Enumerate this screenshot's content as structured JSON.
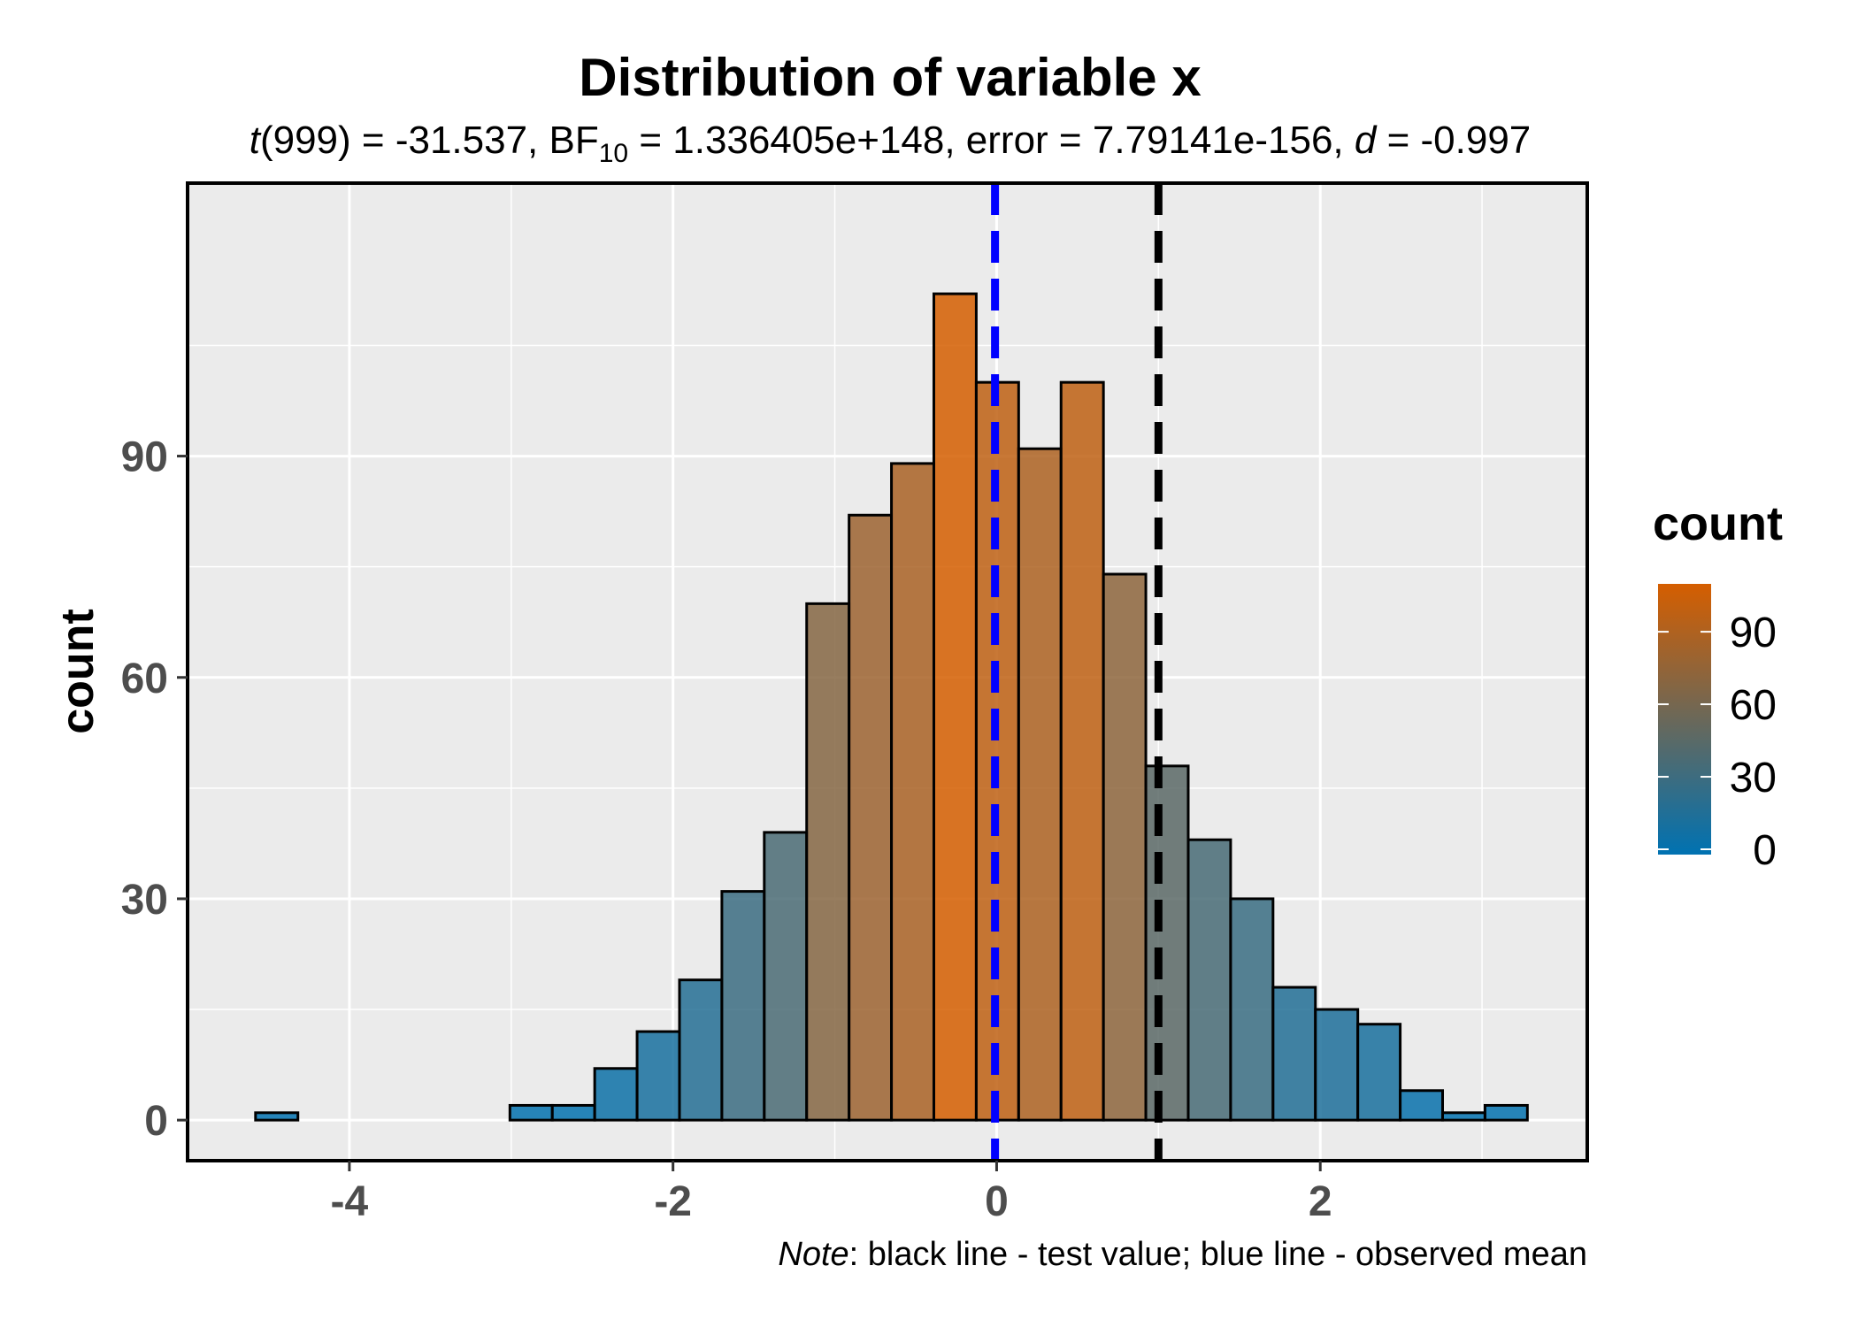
{
  "chart_data": {
    "type": "bar",
    "title": "Distribution of variable x",
    "subtitle": {
      "t_symbol": "t",
      "t_stat": "(999) = -31.537, ",
      "bf_label": "BF",
      "bf_subscript": "10",
      "bf_rest": " = 1.336405e+148, error = 7.79141e-156, ",
      "d_symbol": "d",
      "d_rest": " = -0.997"
    },
    "xlabel": "",
    "ylabel": "count",
    "xlim": [
      -5.0,
      3.65
    ],
    "ylim": [
      -5.5,
      127
    ],
    "x_ticks": [
      -4,
      -2,
      0,
      2
    ],
    "y_ticks": [
      0,
      30,
      60,
      90
    ],
    "grid": true,
    "bin_width": 0.262,
    "bins": [
      {
        "x0": -4.58,
        "count": 1
      },
      {
        "x0": -4.318,
        "count": 0
      },
      {
        "x0": -4.056,
        "count": 0
      },
      {
        "x0": -3.794,
        "count": 0
      },
      {
        "x0": -3.532,
        "count": 0
      },
      {
        "x0": -3.27,
        "count": 0
      },
      {
        "x0": -3.008,
        "count": 2
      },
      {
        "x0": -2.746,
        "count": 2
      },
      {
        "x0": -2.484,
        "count": 7
      },
      {
        "x0": -2.222,
        "count": 12
      },
      {
        "x0": -1.96,
        "count": 19
      },
      {
        "x0": -1.698,
        "count": 31
      },
      {
        "x0": -1.436,
        "count": 39
      },
      {
        "x0": -1.174,
        "count": 70
      },
      {
        "x0": -0.912,
        "count": 82
      },
      {
        "x0": -0.65,
        "count": 89
      },
      {
        "x0": -0.388,
        "count": 112
      },
      {
        "x0": -0.126,
        "count": 100
      },
      {
        "x0": 0.136,
        "count": 91
      },
      {
        "x0": 0.398,
        "count": 100
      },
      {
        "x0": 0.66,
        "count": 74
      },
      {
        "x0": 0.922,
        "count": 48
      },
      {
        "x0": 1.184,
        "count": 38
      },
      {
        "x0": 1.446,
        "count": 30
      },
      {
        "x0": 1.708,
        "count": 18
      },
      {
        "x0": 1.97,
        "count": 15
      },
      {
        "x0": 2.232,
        "count": 13
      },
      {
        "x0": 2.494,
        "count": 4
      },
      {
        "x0": 2.756,
        "count": 1
      },
      {
        "x0": 3.018,
        "count": 2
      }
    ],
    "reference_lines": [
      {
        "x": 1.0,
        "color": "#000000"
      },
      {
        "x": -0.01,
        "color": "#0000ff"
      }
    ],
    "legend": {
      "title": "count",
      "placement": "right",
      "ticks": [
        0,
        30,
        60,
        90
      ],
      "low_color": "#0072B2",
      "high_color": "#D55E00",
      "min": 0,
      "max": 112
    },
    "panel_background": "#ebebeb",
    "grid_color": "#ffffff",
    "caption": {
      "note_word": "Note",
      "note_text": ": black line - test value; blue line - observed mean"
    }
  }
}
